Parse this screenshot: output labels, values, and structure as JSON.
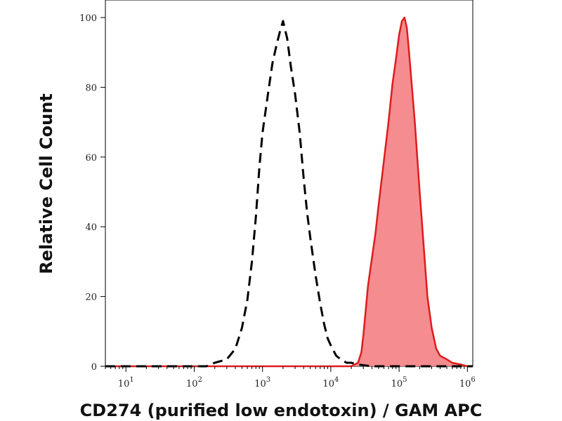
{
  "chart_data": {
    "type": "area",
    "xlabel": "CD274 (purified low endotoxin) / GAM APC",
    "ylabel": "Relative Cell Count",
    "xscale": "log",
    "xlim": [
      5,
      1200000
    ],
    "ylim": [
      0,
      100
    ],
    "grid": false,
    "legend": "none",
    "y_ticks": [
      0,
      20,
      40,
      60,
      80,
      100
    ],
    "x_ticks": [
      {
        "base": "10",
        "exp": "1",
        "value": 10
      },
      {
        "base": "10",
        "exp": "2",
        "value": 100
      },
      {
        "base": "10",
        "exp": "3",
        "value": 1000
      },
      {
        "base": "10",
        "exp": "4",
        "value": 10000
      },
      {
        "base": "10",
        "exp": "5",
        "value": 100000
      },
      {
        "base": "10",
        "exp": "6",
        "value": 1000000
      }
    ],
    "series": [
      {
        "style": "dashed",
        "color": "#000000",
        "fill": "none",
        "x": [
          5,
          150,
          200,
          300,
          400,
          500,
          600,
          700,
          800,
          900,
          1000,
          1200,
          1400,
          1600,
          1800,
          2000,
          2300,
          2600,
          3000,
          3500,
          4000,
          4500,
          5000,
          6000,
          7000,
          8000,
          9000,
          10000,
          12000,
          14000,
          17000,
          20000,
          25000,
          30000,
          40000,
          1200000
        ],
        "y": [
          0,
          0,
          1,
          2,
          5,
          11,
          19,
          30,
          43,
          57,
          67,
          78,
          87,
          92,
          96,
          99,
          94,
          86,
          78,
          67,
          54,
          44,
          37,
          26,
          18,
          12,
          8,
          6,
          3,
          2,
          1,
          1,
          0.5,
          0.3,
          0,
          0
        ]
      },
      {
        "style": "solid-filled",
        "color": "#dd1c1c",
        "fill": "#f4868a",
        "x": [
          5,
          20000,
          25000,
          28000,
          30000,
          35000,
          40000,
          45000,
          50000,
          60000,
          70000,
          80000,
          90000,
          100000,
          110000,
          120000,
          130000,
          140000,
          150000,
          170000,
          200000,
          230000,
          260000,
          300000,
          350000,
          400000,
          500000,
          600000,
          800000,
          1000000,
          1200000
        ],
        "y": [
          0,
          0,
          1,
          4,
          9,
          23,
          31,
          38,
          46,
          59,
          70,
          81,
          88,
          95,
          99,
          100,
          97,
          90,
          83,
          70,
          50,
          34,
          20,
          11,
          5,
          3,
          2,
          1,
          0.5,
          0,
          0
        ]
      }
    ]
  }
}
